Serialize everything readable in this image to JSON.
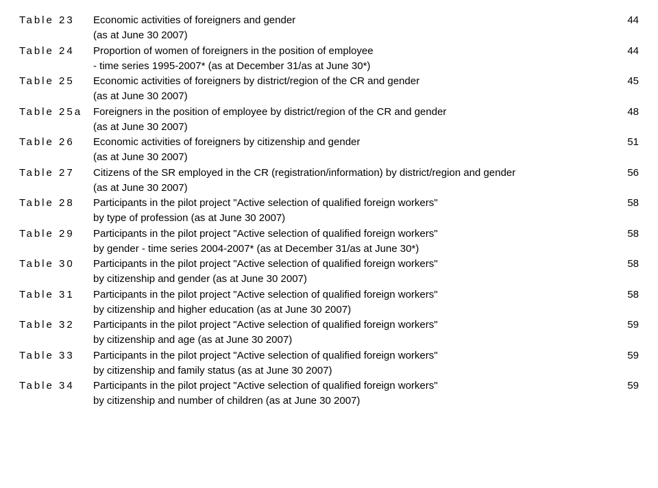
{
  "entries": [
    {
      "label": "Table 23",
      "title": "Economic activities of foreigners and gender",
      "page": "44",
      "subs": [
        "(as at June 30 2007)"
      ]
    },
    {
      "label": "Table 24",
      "title": "Proportion of women of foreigners in the position of employee",
      "page": "44",
      "subs": [
        "- time series 1995-2007* (as at December 31/as at June 30*)"
      ]
    },
    {
      "label": "Table 25",
      "title": "Economic activities of foreigners by district/region of the CR and gender",
      "page": "45",
      "subs": [
        "(as at June 30 2007)"
      ]
    },
    {
      "label": "Table 25a",
      "title": "Foreigners in the position of employee by district/region of the CR and gender",
      "page": "48",
      "subs": [
        "(as at June 30 2007)"
      ]
    },
    {
      "label": "Table 26",
      "title": "Economic activities of foreigners by citizenship and gender",
      "page": "51",
      "subs": [
        "(as at June 30 2007)"
      ]
    },
    {
      "label": "Table 27",
      "title": "Citizens of the SR employed in the CR (registration/information) by district/region and gender",
      "page": "56",
      "subs": [
        "(as at June 30 2007)"
      ]
    },
    {
      "label": "Table 28",
      "title": "Participants in the pilot project \"Active selection of qualified foreign workers\"",
      "page": "58",
      "subs": [
        "by type of profession (as at June 30 2007)"
      ]
    },
    {
      "label": "Table 29",
      "title": "Participants in the pilot project \"Active selection of qualified foreign workers\"",
      "page": "58",
      "subs": [
        "by gender - time series 2004-2007* (as at December 31/as at June 30*)"
      ]
    },
    {
      "label": "Table 30",
      "title": "Participants in the pilot project \"Active selection of qualified foreign workers\"",
      "page": "58",
      "subs": [
        "by citizenship and gender (as at June 30 2007)"
      ]
    },
    {
      "label": "Table 31",
      "title": "Participants in the pilot project \"Active selection of qualified foreign workers\"",
      "page": "58",
      "subs": [
        "by citizenship and  higher education (as at June 30 2007)"
      ]
    },
    {
      "label": "Table 32",
      "title": "Participants in the pilot project \"Active selection of qualified foreign workers\"",
      "page": "59",
      "subs": [
        "by citizenship and age (as at June 30 2007)"
      ]
    },
    {
      "label": "Table 33",
      "title": "Participants in the pilot project \"Active selection of qualified foreign workers\"",
      "page": "59",
      "subs": [
        "by citizenship and family status (as at June 30 2007)"
      ]
    },
    {
      "label": "Table 34",
      "title": "Participants in the pilot project \"Active selection of qualified foreign workers\"",
      "page": "59",
      "subs": [
        "by citizenship and number of children (as at June 30 2007)"
      ]
    }
  ]
}
